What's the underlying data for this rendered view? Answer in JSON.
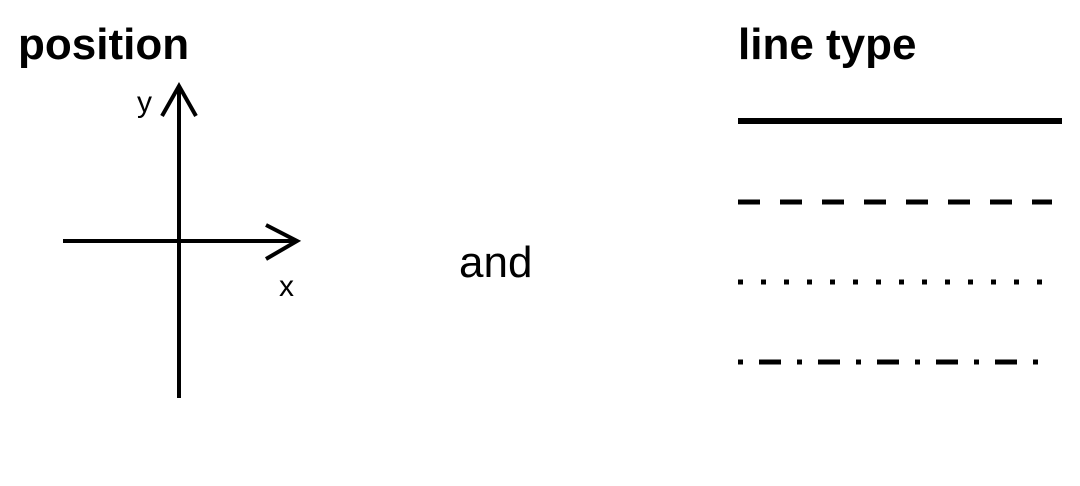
{
  "position_panel": {
    "heading": "position",
    "y_axis_label": "y",
    "x_axis_label": "x"
  },
  "connector": "and",
  "line_type_panel": {
    "heading": "line type",
    "line_styles": [
      "solid",
      "dashed",
      "dotted",
      "dash-dot"
    ]
  },
  "colors": {
    "ink": "#000000",
    "background": "#ffffff"
  }
}
